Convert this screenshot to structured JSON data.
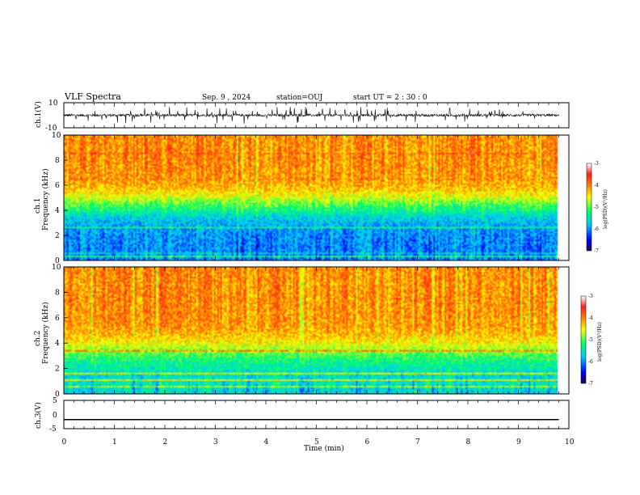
{
  "header": {
    "title": "VLF Spectra",
    "date": "Sep. 9 , 2024",
    "station": "station=OUJ",
    "start_ut": "start  UT =  2 : 30 : 0"
  },
  "colors": {
    "waveform": "#000000",
    "frame": "#000000",
    "colormap": [
      "#1a0a4a",
      "#0000ff",
      "#00c8ff",
      "#00ff66",
      "#ffff00",
      "#ff8000",
      "#ff2020",
      "#ffffff"
    ]
  },
  "chart_data": [
    {
      "type": "line",
      "panel": "ch1-waveform",
      "ylabel": "ch.1(V)",
      "ylim": [
        -10,
        10
      ],
      "y_ticks": [
        "10",
        "-10"
      ],
      "xlim": [
        0,
        10
      ],
      "baseline": 0,
      "spike_amplitude": 4,
      "data_end": 9.8
    },
    {
      "type": "heatmap",
      "panel": "ch1-spectrogram",
      "ylabel": "ch.1",
      "ylabel2": "Frequency  (kHz)",
      "ylim": [
        0,
        10
      ],
      "y_ticks": [
        "0",
        "2",
        "4",
        "6",
        "8",
        "10"
      ],
      "xlim": [
        0,
        10
      ],
      "data_end": 9.8,
      "color_range": [
        -7,
        -3
      ],
      "colorbar_label": "log(PSD)(V²/Hz)",
      "colorbar_ticks": [
        "-3",
        "-4",
        "-5",
        "-6",
        "-7"
      ],
      "high_band_level": -4.0,
      "low_band_level": -6.0,
      "transition_khz": 4.5
    },
    {
      "type": "heatmap",
      "panel": "ch2-spectrogram",
      "ylabel": "ch.2",
      "ylabel2": "Frequency  (kHz)",
      "ylim": [
        0,
        10
      ],
      "y_ticks": [
        "0",
        "2",
        "4",
        "6",
        "8",
        "10"
      ],
      "xlim": [
        0,
        10
      ],
      "data_end": 9.8,
      "color_range": [
        -7,
        -3
      ],
      "colorbar_label": "log(PSD)(V²/Hz)",
      "colorbar_ticks": [
        "-3",
        "-4",
        "-5",
        "-6",
        "-7"
      ],
      "high_band_level": -4.0,
      "low_band_level": -5.6,
      "transition_khz": 3.5
    },
    {
      "type": "line",
      "panel": "ch3-waveform",
      "ylabel": "ch.3(V)",
      "ylim": [
        -5,
        5
      ],
      "y_ticks": [
        "5",
        "0",
        "-5"
      ],
      "xlim": [
        0,
        10
      ],
      "x_ticks": [
        "0",
        "1",
        "2",
        "3",
        "4",
        "5",
        "6",
        "7",
        "8",
        "9",
        "10"
      ],
      "xlabel": "Time  (min)",
      "baseline": -1.8,
      "data_end": 9.8
    }
  ]
}
